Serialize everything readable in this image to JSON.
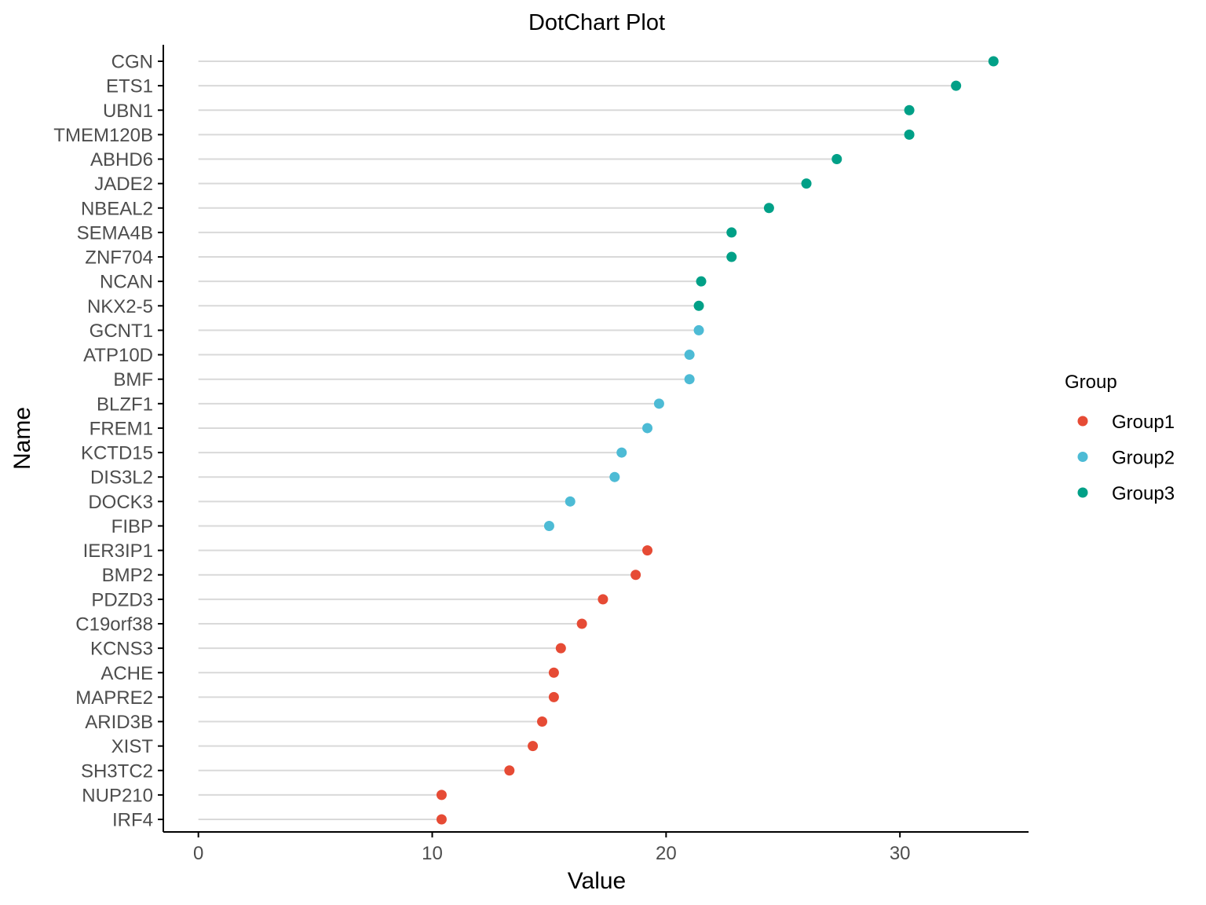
{
  "chart_data": {
    "type": "scatter",
    "title": "DotChart Plot",
    "xlabel": "Value",
    "ylabel": "Name",
    "xlim": [
      -1.5,
      35.5
    ],
    "x_ticks": [
      "0",
      "10",
      "20",
      "30"
    ],
    "x_tick_values": [
      0,
      10,
      20,
      30
    ],
    "grid": false,
    "segments_from_zero": true,
    "legend": {
      "title": "Group",
      "placement": "right",
      "entries": [
        "Group1",
        "Group2",
        "Group3"
      ]
    },
    "colors": {
      "Group1": "#e64b35",
      "Group2": "#4dbbd5",
      "Group3": "#00a087",
      "segment": "#d9d9d9",
      "axis": "#000000"
    },
    "points": [
      {
        "name": "CGN",
        "value": 34.0,
        "group": "Group3"
      },
      {
        "name": "ETS1",
        "value": 32.4,
        "group": "Group3"
      },
      {
        "name": "UBN1",
        "value": 30.4,
        "group": "Group3"
      },
      {
        "name": "TMEM120B",
        "value": 30.4,
        "group": "Group3"
      },
      {
        "name": "ABHD6",
        "value": 27.3,
        "group": "Group3"
      },
      {
        "name": "JADE2",
        "value": 26.0,
        "group": "Group3"
      },
      {
        "name": "NBEAL2",
        "value": 24.4,
        "group": "Group3"
      },
      {
        "name": "SEMA4B",
        "value": 22.8,
        "group": "Group3"
      },
      {
        "name": "ZNF704",
        "value": 22.8,
        "group": "Group3"
      },
      {
        "name": "NCAN",
        "value": 21.5,
        "group": "Group3"
      },
      {
        "name": "NKX2-5",
        "value": 21.4,
        "group": "Group3"
      },
      {
        "name": "GCNT1",
        "value": 21.4,
        "group": "Group2"
      },
      {
        "name": "ATP10D",
        "value": 21.0,
        "group": "Group2"
      },
      {
        "name": "BMF",
        "value": 21.0,
        "group": "Group2"
      },
      {
        "name": "BLZF1",
        "value": 19.7,
        "group": "Group2"
      },
      {
        "name": "FREM1",
        "value": 19.2,
        "group": "Group2"
      },
      {
        "name": "KCTD15",
        "value": 18.1,
        "group": "Group2"
      },
      {
        "name": "DIS3L2",
        "value": 17.8,
        "group": "Group2"
      },
      {
        "name": "DOCK3",
        "value": 15.9,
        "group": "Group2"
      },
      {
        "name": "FIBP",
        "value": 15.0,
        "group": "Group2"
      },
      {
        "name": "IER3IP1",
        "value": 19.2,
        "group": "Group1"
      },
      {
        "name": "BMP2",
        "value": 18.7,
        "group": "Group1"
      },
      {
        "name": "PDZD3",
        "value": 17.3,
        "group": "Group1"
      },
      {
        "name": "C19orf38",
        "value": 16.4,
        "group": "Group1"
      },
      {
        "name": "KCNS3",
        "value": 15.5,
        "group": "Group1"
      },
      {
        "name": "ACHE",
        "value": 15.2,
        "group": "Group1"
      },
      {
        "name": "MAPRE2",
        "value": 15.2,
        "group": "Group1"
      },
      {
        "name": "ARID3B",
        "value": 14.7,
        "group": "Group1"
      },
      {
        "name": "XIST",
        "value": 14.3,
        "group": "Group1"
      },
      {
        "name": "SH3TC2",
        "value": 13.3,
        "group": "Group1"
      },
      {
        "name": "NUP210",
        "value": 10.4,
        "group": "Group1"
      },
      {
        "name": "IRF4",
        "value": 10.4,
        "group": "Group1"
      }
    ]
  }
}
